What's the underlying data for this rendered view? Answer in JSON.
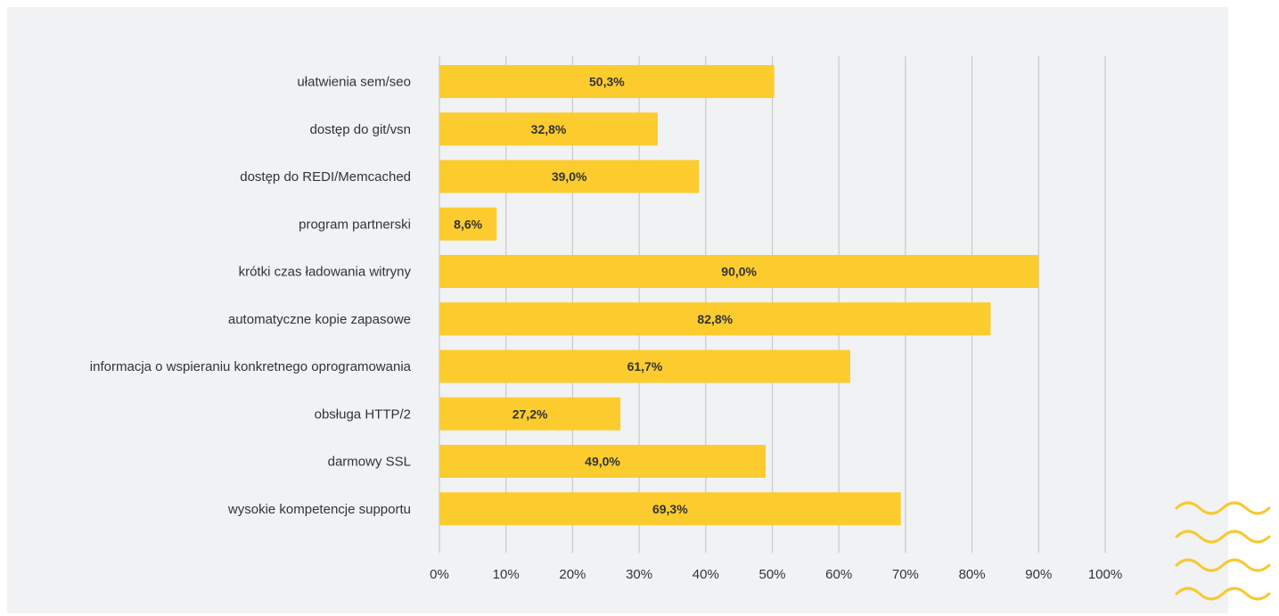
{
  "chart_data": {
    "type": "bar",
    "orientation": "horizontal",
    "categories": [
      "ułatwienia sem/seo",
      "dostęp do git/vsn",
      "dostęp do REDI/Memcached",
      "program partnerski",
      "krótki czas ładowania witryny",
      "automatyczne kopie zapasowe",
      "informacja o wspieraniu konkretnego oprogramowania",
      "obsługa HTTP/2",
      "darmowy SSL",
      "wysokie kompetencje supportu"
    ],
    "values": [
      50.3,
      32.8,
      39.0,
      8.6,
      90.0,
      82.8,
      61.7,
      27.2,
      49.0,
      69.3
    ],
    "value_labels": [
      "50,3%",
      "32,8%",
      "39,0%",
      "8,6%",
      "90,0%",
      "82,8%",
      "61,7%",
      "27,2%",
      "49,0%",
      "69,3%"
    ],
    "xlim": [
      0,
      100
    ],
    "xticks": [
      0,
      10,
      20,
      30,
      40,
      50,
      60,
      70,
      80,
      90,
      100
    ],
    "xtick_labels": [
      "0%",
      "10%",
      "20%",
      "30%",
      "40%",
      "50%",
      "60%",
      "70%",
      "80%",
      "90%",
      "100%"
    ],
    "grid": true,
    "title": "",
    "xlabel": "",
    "ylabel": ""
  },
  "colors": {
    "bar": "#fccc2e",
    "panel_background": "#f1f2f4",
    "gridline": "#c7c9cc",
    "decoration": "#f6c931"
  },
  "decoration": {
    "icon": "wavy-lines-icon"
  }
}
